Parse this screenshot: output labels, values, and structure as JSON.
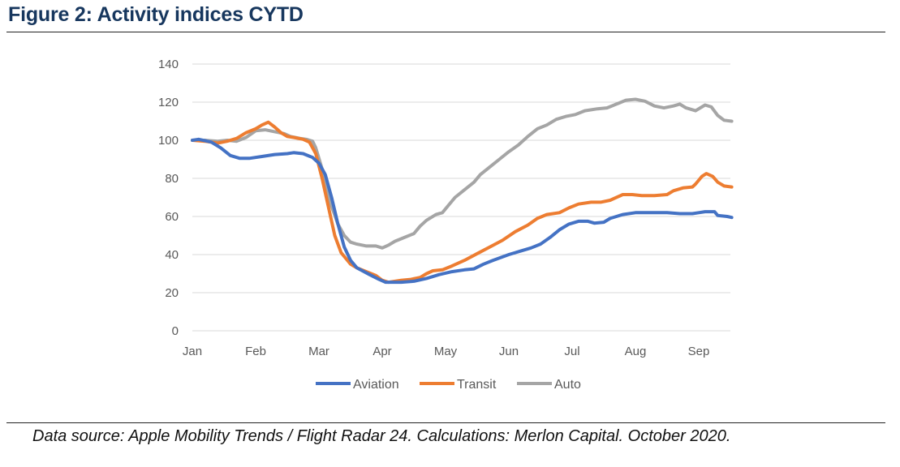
{
  "figure": {
    "title": "Figure 2: Activity indices CYTD",
    "source": "Data source: Apple Mobility Trends / Flight Radar 24. Calculations: Merlon Capital. October 2020."
  },
  "chart_data": {
    "type": "line",
    "title": "",
    "xlabel": "",
    "ylabel": "",
    "ylim": [
      0,
      140
    ],
    "yticks": [
      0,
      20,
      40,
      60,
      80,
      100,
      120,
      140
    ],
    "xlim": [
      0,
      8.5
    ],
    "xticks": [
      {
        "label": "Jan",
        "x": 0
      },
      {
        "label": "Feb",
        "x": 1
      },
      {
        "label": "Mar",
        "x": 2
      },
      {
        "label": "Apr",
        "x": 3
      },
      {
        "label": "May",
        "x": 4
      },
      {
        "label": "Jun",
        "x": 5
      },
      {
        "label": "Jul",
        "x": 6
      },
      {
        "label": "Aug",
        "x": 7
      },
      {
        "label": "Sep",
        "x": 8
      }
    ],
    "grid": true,
    "legend": "bottom",
    "series": [
      {
        "name": "Aviation",
        "color": "#4472C4",
        "points": [
          [
            0,
            100
          ],
          [
            0.1,
            100.5
          ],
          [
            0.3,
            99
          ],
          [
            0.45,
            96
          ],
          [
            0.6,
            92
          ],
          [
            0.75,
            90.5
          ],
          [
            0.9,
            90.5
          ],
          [
            1.1,
            91.5
          ],
          [
            1.3,
            92.5
          ],
          [
            1.5,
            93
          ],
          [
            1.6,
            93.5
          ],
          [
            1.75,
            93
          ],
          [
            1.9,
            91
          ],
          [
            2.0,
            88
          ],
          [
            2.1,
            82
          ],
          [
            2.2,
            70
          ],
          [
            2.3,
            56
          ],
          [
            2.4,
            44
          ],
          [
            2.5,
            37
          ],
          [
            2.6,
            33
          ],
          [
            2.8,
            29.5
          ],
          [
            2.95,
            27
          ],
          [
            3.05,
            25.5
          ],
          [
            3.3,
            25.5
          ],
          [
            3.5,
            26
          ],
          [
            3.7,
            27.5
          ],
          [
            3.9,
            29.5
          ],
          [
            4.1,
            31
          ],
          [
            4.3,
            32
          ],
          [
            4.45,
            32.5
          ],
          [
            4.6,
            35
          ],
          [
            4.75,
            37
          ],
          [
            5.0,
            40
          ],
          [
            5.2,
            42
          ],
          [
            5.35,
            43.5
          ],
          [
            5.5,
            45.5
          ],
          [
            5.65,
            49
          ],
          [
            5.8,
            53
          ],
          [
            5.95,
            56
          ],
          [
            6.1,
            57.5
          ],
          [
            6.25,
            57.5
          ],
          [
            6.35,
            56.5
          ],
          [
            6.5,
            57
          ],
          [
            6.6,
            59
          ],
          [
            6.8,
            61
          ],
          [
            7.0,
            62
          ],
          [
            7.3,
            62
          ],
          [
            7.5,
            62
          ],
          [
            7.7,
            61.5
          ],
          [
            7.9,
            61.5
          ],
          [
            8.0,
            62
          ],
          [
            8.1,
            62.5
          ],
          [
            8.25,
            62.5
          ],
          [
            8.3,
            60.5
          ],
          [
            8.45,
            60
          ],
          [
            8.52,
            59.5
          ]
        ]
      },
      {
        "name": "Transit",
        "color": "#ED7D31",
        "points": [
          [
            0,
            100
          ],
          [
            0.2,
            99.5
          ],
          [
            0.4,
            98.5
          ],
          [
            0.55,
            99.5
          ],
          [
            0.7,
            101
          ],
          [
            0.85,
            104
          ],
          [
            1.0,
            106
          ],
          [
            1.1,
            108
          ],
          [
            1.2,
            109.5
          ],
          [
            1.3,
            107
          ],
          [
            1.4,
            104
          ],
          [
            1.5,
            102
          ],
          [
            1.6,
            101.5
          ],
          [
            1.75,
            100.5
          ],
          [
            1.85,
            99
          ],
          [
            1.95,
            93
          ],
          [
            2.05,
            80
          ],
          [
            2.15,
            65
          ],
          [
            2.25,
            50
          ],
          [
            2.35,
            41
          ],
          [
            2.5,
            35
          ],
          [
            2.6,
            33
          ],
          [
            2.75,
            31
          ],
          [
            2.9,
            29
          ],
          [
            3.0,
            26.5
          ],
          [
            3.1,
            25.5
          ],
          [
            3.3,
            26.5
          ],
          [
            3.45,
            27
          ],
          [
            3.6,
            28
          ],
          [
            3.7,
            30
          ],
          [
            3.8,
            31.5
          ],
          [
            3.95,
            32
          ],
          [
            4.1,
            34
          ],
          [
            4.3,
            37
          ],
          [
            4.5,
            40.5
          ],
          [
            4.7,
            44
          ],
          [
            4.9,
            47.5
          ],
          [
            5.1,
            52
          ],
          [
            5.3,
            55.5
          ],
          [
            5.45,
            59
          ],
          [
            5.6,
            61
          ],
          [
            5.8,
            62
          ],
          [
            5.95,
            64.5
          ],
          [
            6.1,
            66.5
          ],
          [
            6.3,
            67.5
          ],
          [
            6.45,
            67.5
          ],
          [
            6.6,
            68.5
          ],
          [
            6.8,
            71.5
          ],
          [
            6.95,
            71.5
          ],
          [
            7.1,
            71
          ],
          [
            7.3,
            71
          ],
          [
            7.5,
            71.5
          ],
          [
            7.6,
            73.5
          ],
          [
            7.75,
            75
          ],
          [
            7.9,
            75.5
          ],
          [
            7.95,
            77
          ],
          [
            8.05,
            81
          ],
          [
            8.12,
            82.5
          ],
          [
            8.22,
            81
          ],
          [
            8.3,
            78
          ],
          [
            8.4,
            76
          ],
          [
            8.52,
            75.5
          ]
        ]
      },
      {
        "name": "Auto",
        "color": "#A5A5A5",
        "points": [
          [
            0,
            100
          ],
          [
            0.2,
            100
          ],
          [
            0.4,
            99.5
          ],
          [
            0.55,
            100
          ],
          [
            0.7,
            99.5
          ],
          [
            0.85,
            101.5
          ],
          [
            1.0,
            105
          ],
          [
            1.15,
            105.5
          ],
          [
            1.3,
            104.5
          ],
          [
            1.45,
            103.5
          ],
          [
            1.55,
            102
          ],
          [
            1.7,
            101
          ],
          [
            1.8,
            100.5
          ],
          [
            1.9,
            99.5
          ],
          [
            1.95,
            96
          ],
          [
            2.05,
            85
          ],
          [
            2.15,
            70
          ],
          [
            2.3,
            56
          ],
          [
            2.4,
            50
          ],
          [
            2.5,
            46.5
          ],
          [
            2.6,
            45.5
          ],
          [
            2.75,
            44.5
          ],
          [
            2.9,
            44.5
          ],
          [
            3.0,
            43.5
          ],
          [
            3.1,
            45
          ],
          [
            3.2,
            47
          ],
          [
            3.35,
            49
          ],
          [
            3.5,
            51
          ],
          [
            3.6,
            55
          ],
          [
            3.7,
            58
          ],
          [
            3.85,
            61
          ],
          [
            3.95,
            62
          ],
          [
            4.05,
            66
          ],
          [
            4.15,
            70
          ],
          [
            4.3,
            74
          ],
          [
            4.45,
            78
          ],
          [
            4.55,
            82
          ],
          [
            4.7,
            86
          ],
          [
            4.85,
            90
          ],
          [
            5.0,
            94
          ],
          [
            5.15,
            97.5
          ],
          [
            5.3,
            102
          ],
          [
            5.45,
            106
          ],
          [
            5.6,
            108
          ],
          [
            5.75,
            111
          ],
          [
            5.9,
            112.5
          ],
          [
            6.05,
            113.5
          ],
          [
            6.2,
            115.5
          ],
          [
            6.4,
            116.5
          ],
          [
            6.55,
            117
          ],
          [
            6.7,
            119
          ],
          [
            6.85,
            121
          ],
          [
            7.0,
            121.5
          ],
          [
            7.15,
            120.5
          ],
          [
            7.3,
            118
          ],
          [
            7.45,
            117
          ],
          [
            7.6,
            118
          ],
          [
            7.7,
            119
          ],
          [
            7.8,
            117
          ],
          [
            7.95,
            115.5
          ],
          [
            8.1,
            118.5
          ],
          [
            8.2,
            117.5
          ],
          [
            8.3,
            113
          ],
          [
            8.4,
            110.5
          ],
          [
            8.52,
            110
          ]
        ]
      }
    ]
  }
}
